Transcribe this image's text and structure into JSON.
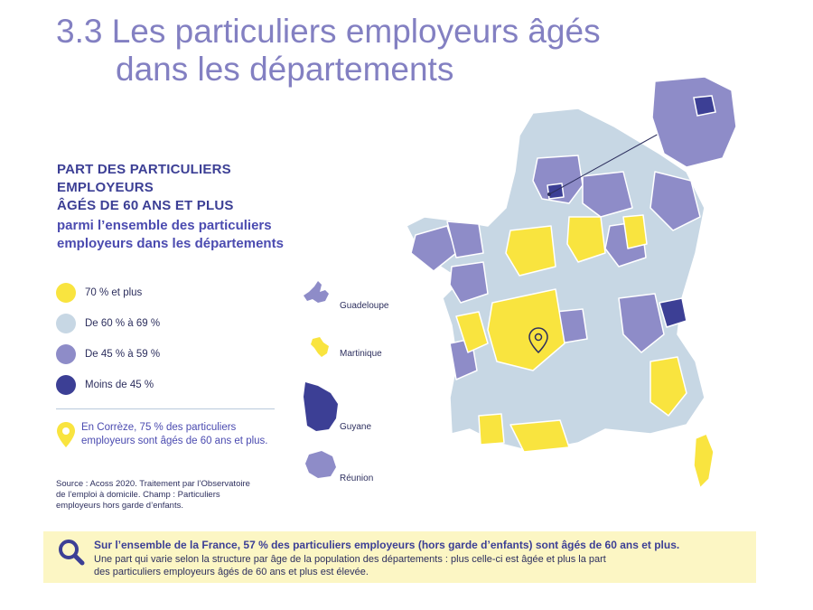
{
  "title": {
    "line1": "3.3 Les particuliers employeurs âgés",
    "line2": "dans les départements"
  },
  "heading": {
    "line1": "PART DES PARTICULIERS EMPLOYEURS",
    "line2": "ÂGÉS DE 60 ANS ET PLUS",
    "line3": "parmi l’ensemble des particuliers",
    "line4": "employeurs dans les départements"
  },
  "legend": [
    {
      "label": "70 % et plus",
      "color": "#f9e43f"
    },
    {
      "label": "De 60 % à 69 %",
      "color": "#c7d7e4"
    },
    {
      "label": "De 45 % à 59 %",
      "color": "#8e8cc8"
    },
    {
      "label": "Moins de 45 %",
      "color": "#3c3f95"
    }
  ],
  "note": {
    "line1": "En Corrèze, 75 % des particuliers",
    "line2": "employeurs sont âgés de 60 ans et plus.",
    "icon": "map-pin-icon"
  },
  "source": {
    "line1": "Source : Acoss 2020. Traitement par l’Observatoire",
    "line2": "de l’emploi à domicile. Champ : Particuliers",
    "line3": "employeurs hors garde d’enfants."
  },
  "overseas": [
    {
      "name": "Guadeloupe",
      "color": "#8e8cc8"
    },
    {
      "name": "Martinique",
      "color": "#f9e43f"
    },
    {
      "name": "Guyane",
      "color": "#3c3f95"
    },
    {
      "name": "Réunion",
      "color": "#8e8cc8"
    }
  ],
  "footer": {
    "bold": "Sur l’ensemble de la France, 57 % des particuliers employeurs (hors garde d’enfants) sont âgés de 60 ans et plus.",
    "line1": "Une part qui varie selon la structure par âge de la population des départements : plus celle-ci est âgée et plus la part",
    "line2": "des particuliers employeurs âgés de 60 ans et plus est élevée.",
    "icon": "magnifier-icon"
  },
  "colors": {
    "title": "#8380c2",
    "yellow": "#f9e43f",
    "light_blue": "#c7d7e4",
    "purple": "#8e8cc8",
    "dark_blue": "#3c3f95",
    "footer_bg": "#fcf6c4"
  }
}
